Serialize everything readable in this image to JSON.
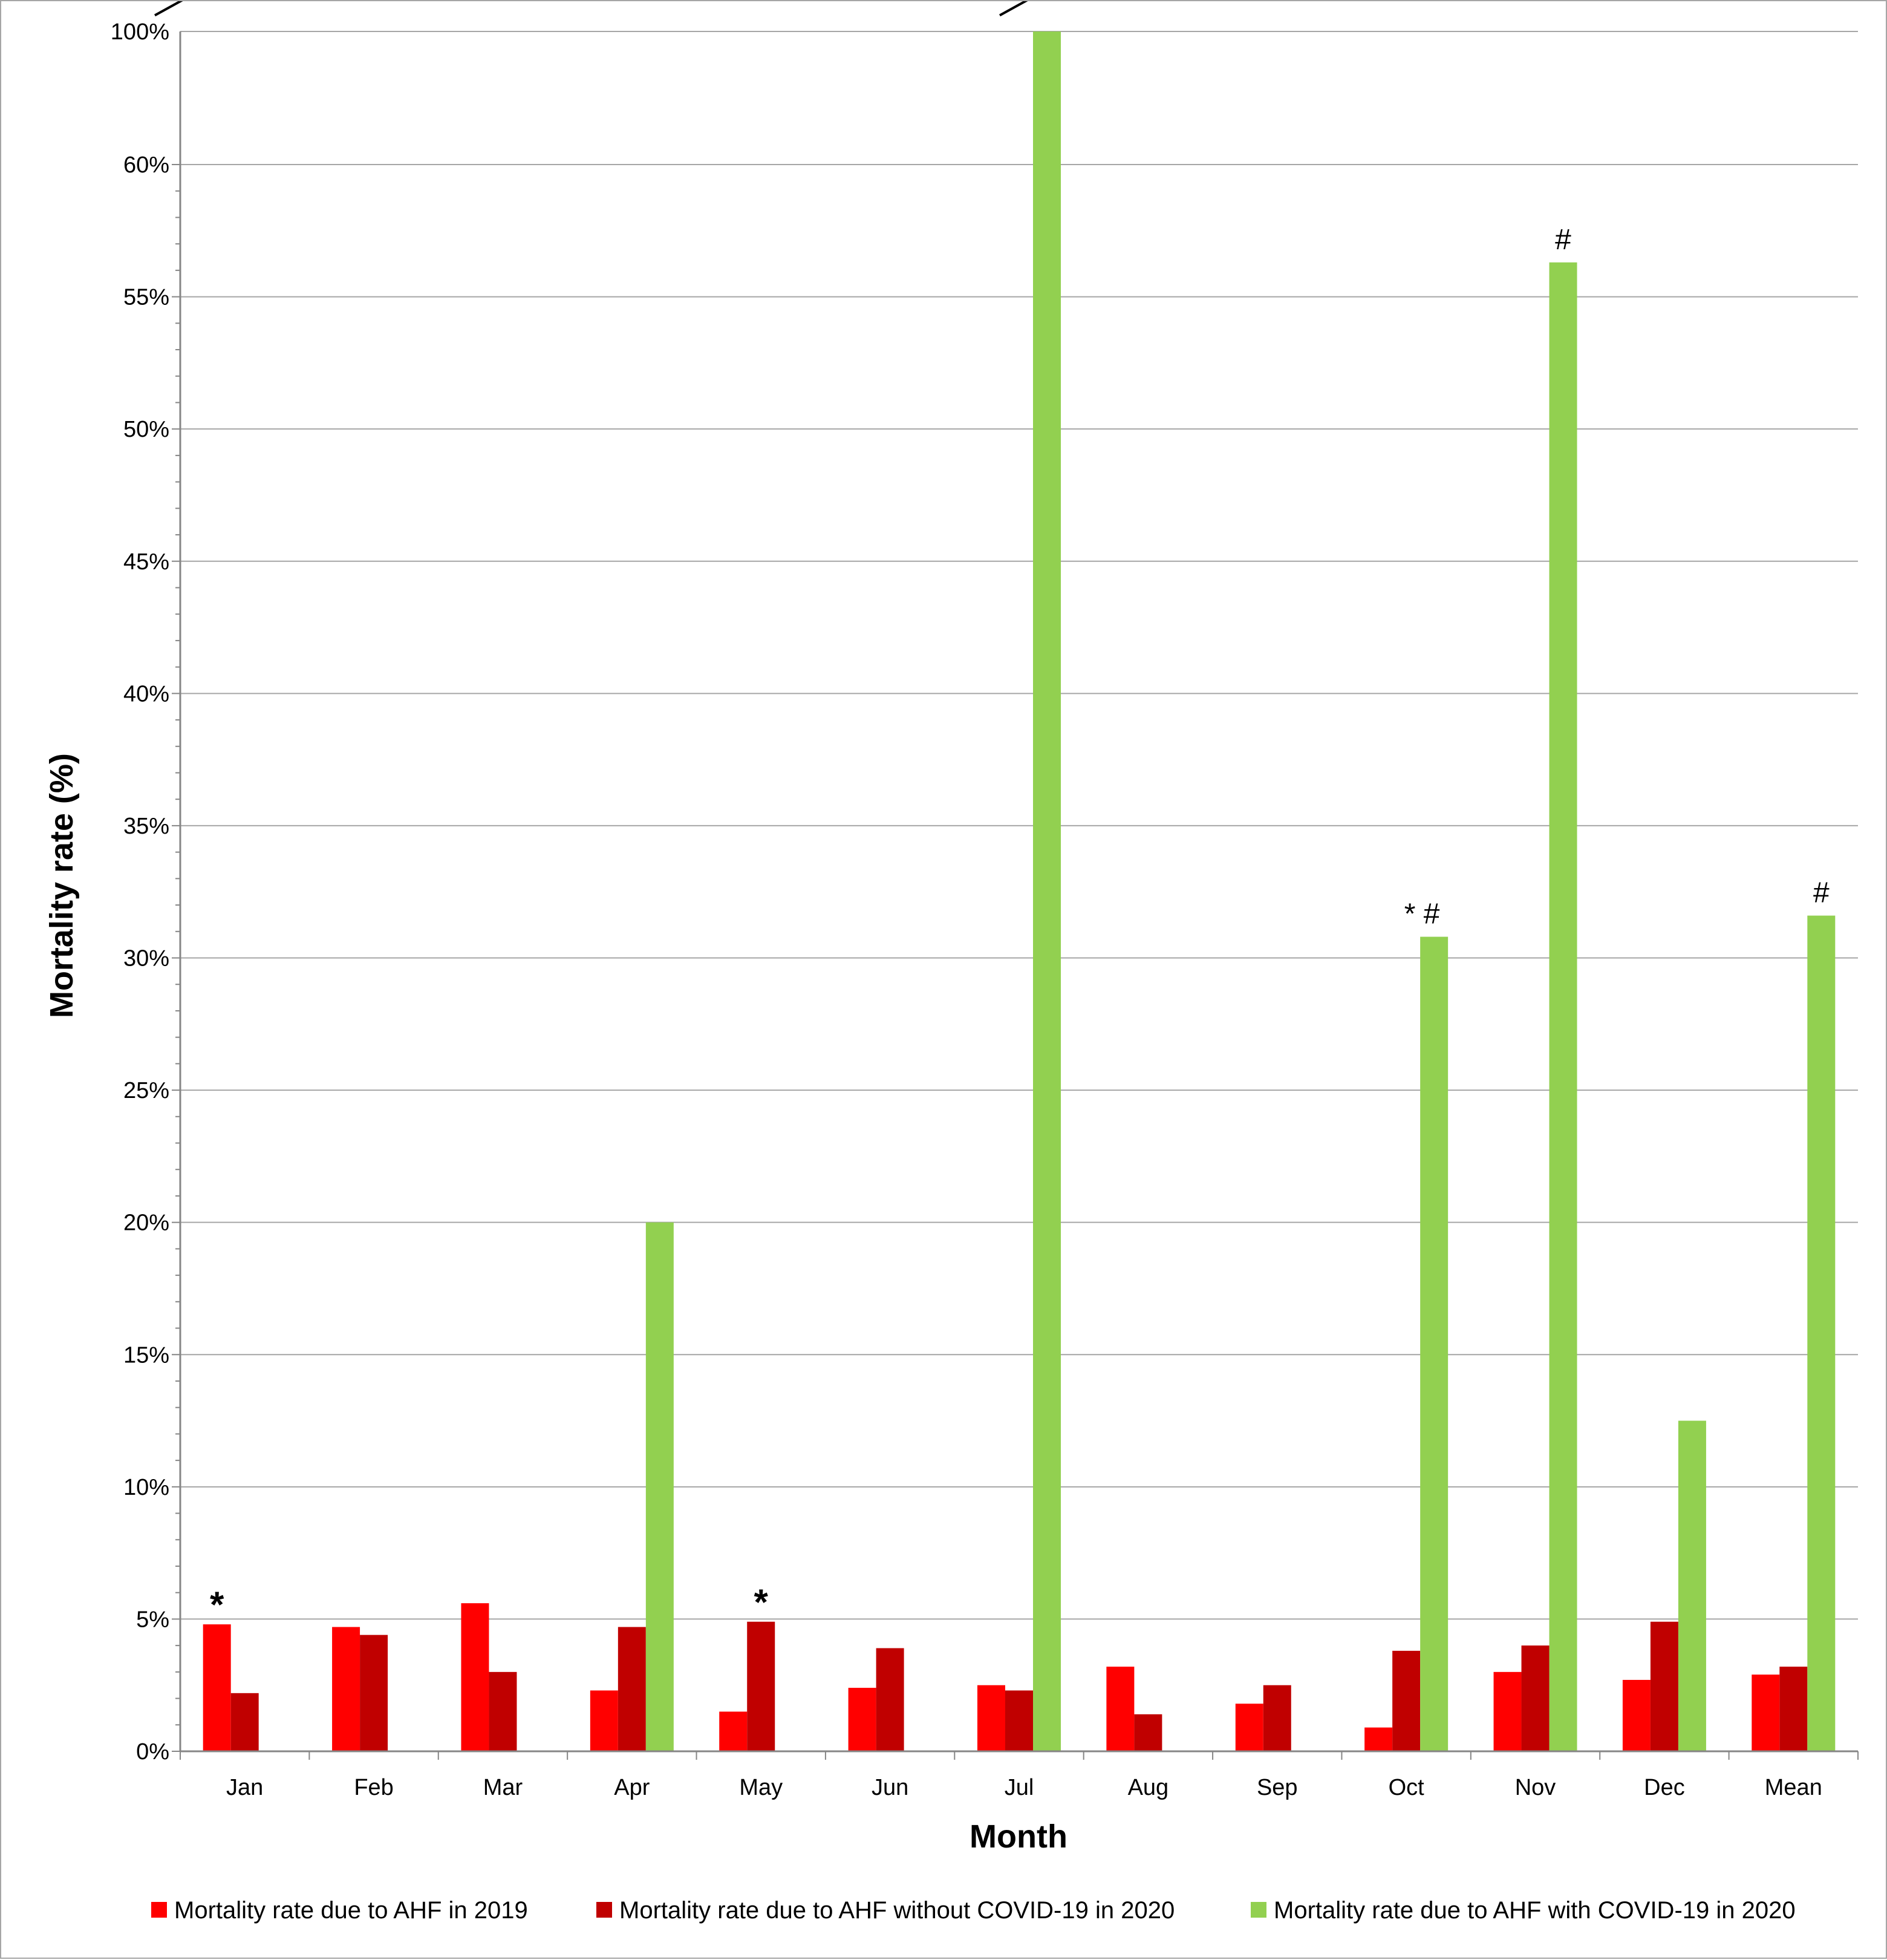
{
  "chart_data": {
    "type": "bar",
    "title": "",
    "xlabel": "Month",
    "ylabel": "Mortality rate (%)",
    "categories": [
      "Jan",
      "Feb",
      "Mar",
      "Apr",
      "May",
      "Jun",
      "Jul",
      "Aug",
      "Sep",
      "Oct",
      "Nov",
      "Dec",
      "Mean"
    ],
    "series": [
      {
        "name": "Mortality rate due to AHF in 2019",
        "color": "#ff0000",
        "values": [
          4.8,
          4.7,
          5.6,
          2.3,
          1.5,
          2.4,
          2.5,
          3.2,
          1.8,
          0.9,
          3.0,
          2.7,
          2.9
        ]
      },
      {
        "name": "Mortality rate due to AHF without COVID-19 in 2020",
        "color": "#c00000",
        "values": [
          2.2,
          4.4,
          3.0,
          4.7,
          4.9,
          3.9,
          2.3,
          1.4,
          2.5,
          3.8,
          4.0,
          4.9,
          3.2
        ]
      },
      {
        "name": "Mortality rate due to AHF with COVID-19 in 2020",
        "color": "#92d050",
        "values": [
          null,
          null,
          null,
          20.0,
          null,
          null,
          100.0,
          null,
          null,
          30.8,
          56.3,
          12.5,
          31.6
        ]
      }
    ],
    "ylim": [
      0,
      100
    ],
    "axis_break": {
      "from": 65,
      "to": 100
    },
    "yticks": [
      0,
      5,
      10,
      15,
      20,
      25,
      30,
      35,
      40,
      45,
      50,
      55,
      60,
      100
    ],
    "ytick_labels": [
      "0%",
      "5%",
      "10%",
      "15%",
      "20%",
      "25%",
      "30%",
      "35%",
      "40%",
      "45%",
      "50%",
      "55%",
      "60%",
      "100%"
    ],
    "grid": true,
    "legend_position": "bottom",
    "annotations": [
      {
        "category": "Jan",
        "series": 0,
        "text": "*"
      },
      {
        "category": "May",
        "series": 1,
        "text": "*"
      },
      {
        "category": "Oct",
        "series": 2,
        "text": "* #"
      },
      {
        "category": "Nov",
        "series": 2,
        "text": "#"
      },
      {
        "category": "Mean",
        "series": 2,
        "text": "#"
      }
    ]
  }
}
